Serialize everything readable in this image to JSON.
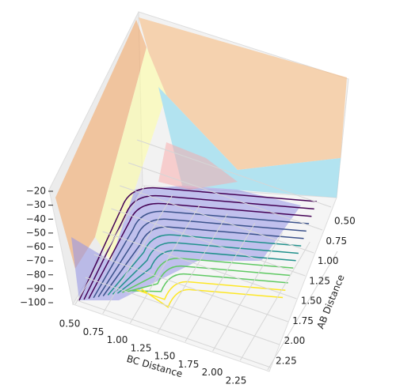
{
  "chart_data": {
    "type": "surface3d",
    "x_label": "BC Distance",
    "y_label": "AB Distance",
    "xlim": [
      0.5,
      2.25
    ],
    "ylim": [
      0.5,
      2.25
    ],
    "zlim": [
      -20,
      -100
    ],
    "xticks": [
      {
        "value": 0.5,
        "label": "0.50"
      },
      {
        "value": 0.75,
        "label": "0.75"
      },
      {
        "value": 1.0,
        "label": "1.00"
      },
      {
        "value": 1.25,
        "label": "1.25"
      },
      {
        "value": 1.5,
        "label": "1.50"
      },
      {
        "value": 1.75,
        "label": "1.75"
      },
      {
        "value": 2.0,
        "label": "2.00"
      },
      {
        "value": 2.25,
        "label": "2.25"
      }
    ],
    "yticks": [
      {
        "value": 0.5,
        "label": "0.50"
      },
      {
        "value": 0.75,
        "label": "0.75"
      },
      {
        "value": 1.0,
        "label": "1.00"
      },
      {
        "value": 1.25,
        "label": "1.25"
      },
      {
        "value": 1.5,
        "label": "1.50"
      },
      {
        "value": 1.75,
        "label": "1.75"
      },
      {
        "value": 2.0,
        "label": "2.00"
      },
      {
        "value": 2.25,
        "label": "2.25"
      }
    ],
    "zticks": [
      {
        "value": -20,
        "label": "−20"
      },
      {
        "value": -30,
        "label": "−30"
      },
      {
        "value": -40,
        "label": "−40"
      },
      {
        "value": -50,
        "label": "−50"
      },
      {
        "value": -60,
        "label": "−60"
      },
      {
        "value": -70,
        "label": "−70"
      },
      {
        "value": -80,
        "label": "−80"
      },
      {
        "value": -90,
        "label": "−90"
      },
      {
        "value": -100,
        "label": "−100"
      }
    ]
  }
}
